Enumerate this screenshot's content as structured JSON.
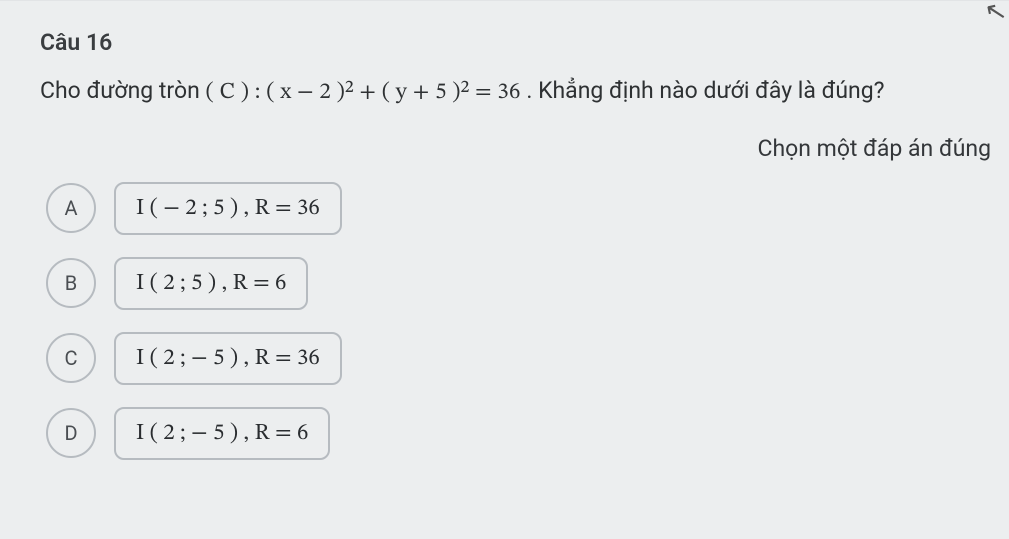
{
  "cursor_glyph": "↖",
  "question": {
    "title": "Câu 16",
    "stem_pre": "Cho đường tròn ",
    "stem_math": "( C ) : ( x − 2 )² + ( y + 5 )² = 36",
    "stem_post": ". Khẳng định nào dưới đây là đúng?",
    "instruction": "Chọn một đáp án đúng"
  },
  "options": [
    {
      "letter": "A",
      "label": "I ( − 2 ; 5 ) ,  R = 36"
    },
    {
      "letter": "B",
      "label": "I ( 2 ; 5 ) ,  R = 6"
    },
    {
      "letter": "C",
      "label": "I ( 2 ; − 5 ) ,  R = 36"
    },
    {
      "letter": "D",
      "label": "I ( 2 ; − 5 ) ,  R = 6"
    }
  ],
  "colors": {
    "page_bg": "#eceeef",
    "text": "#2e3133",
    "border": "#b6bbc0"
  }
}
